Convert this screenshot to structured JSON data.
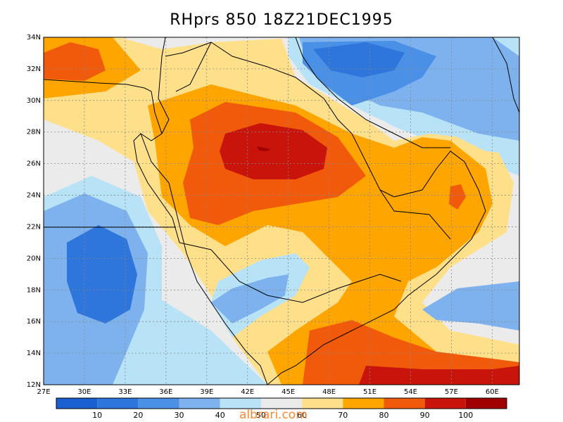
{
  "title": "RHprs 850 18Z21DEC1995",
  "watermark": "albrari.com",
  "map": {
    "lat_range": [
      12,
      34
    ],
    "lon_range": [
      27,
      62
    ],
    "lat_ticks": [
      "12N",
      "14N",
      "16N",
      "18N",
      "20N",
      "22N",
      "24N",
      "26N",
      "28N",
      "30N",
      "32N",
      "34N"
    ],
    "lon_ticks": [
      "27E",
      "30E",
      "33E",
      "36E",
      "39E",
      "42E",
      "45E",
      "48E",
      "51E",
      "54E",
      "57E",
      "60E"
    ],
    "grid": "dotted",
    "colors": {
      "lt10": "#1a5fd1",
      "10-20": "#2e75dc",
      "20-30": "#4a90e6",
      "30-40": "#7db2ee",
      "40-50": "#b8e2f6",
      "50-60": "#ebebeb",
      "60-70": "#ffe08a",
      "70-80": "#ffa500",
      "80-90": "#f05a0a",
      "90-100": "#c8140a",
      "gt100": "#a00000"
    }
  },
  "colorbar": {
    "labels": [
      "10",
      "20",
      "30",
      "40",
      "50",
      "60",
      "70",
      "80",
      "90",
      "100"
    ],
    "colors": [
      "#1a5fd1",
      "#2e75dc",
      "#4a90e6",
      "#7db2ee",
      "#b8e2f6",
      "#ebebeb",
      "#ffe08a",
      "#ffa500",
      "#f05a0a",
      "#c8140a",
      "#a00000"
    ]
  }
}
